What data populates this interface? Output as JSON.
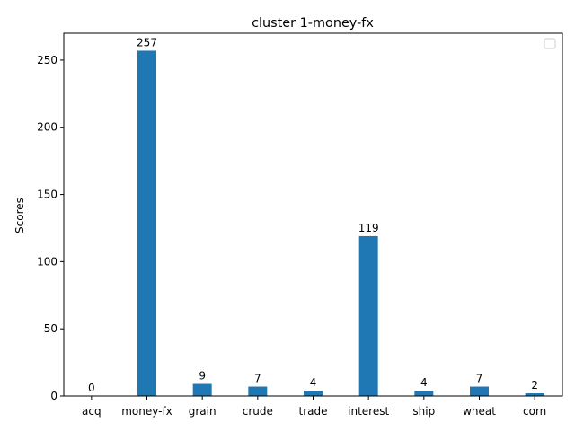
{
  "chart_data": {
    "type": "bar",
    "title": "cluster 1-money-fx",
    "xlabel": "",
    "ylabel": "Scores",
    "categories": [
      "acq",
      "money-fx",
      "grain",
      "crude",
      "trade",
      "interest",
      "ship",
      "wheat",
      "corn"
    ],
    "values": [
      0,
      257,
      9,
      7,
      4,
      119,
      4,
      7,
      2
    ],
    "ylim": [
      0,
      270
    ],
    "yticks": [
      0,
      50,
      100,
      150,
      200,
      250
    ],
    "bar_color": "#1f77b4",
    "grid": false,
    "legend": {
      "placement": "top-right",
      "entries": []
    },
    "data_labels": true
  }
}
